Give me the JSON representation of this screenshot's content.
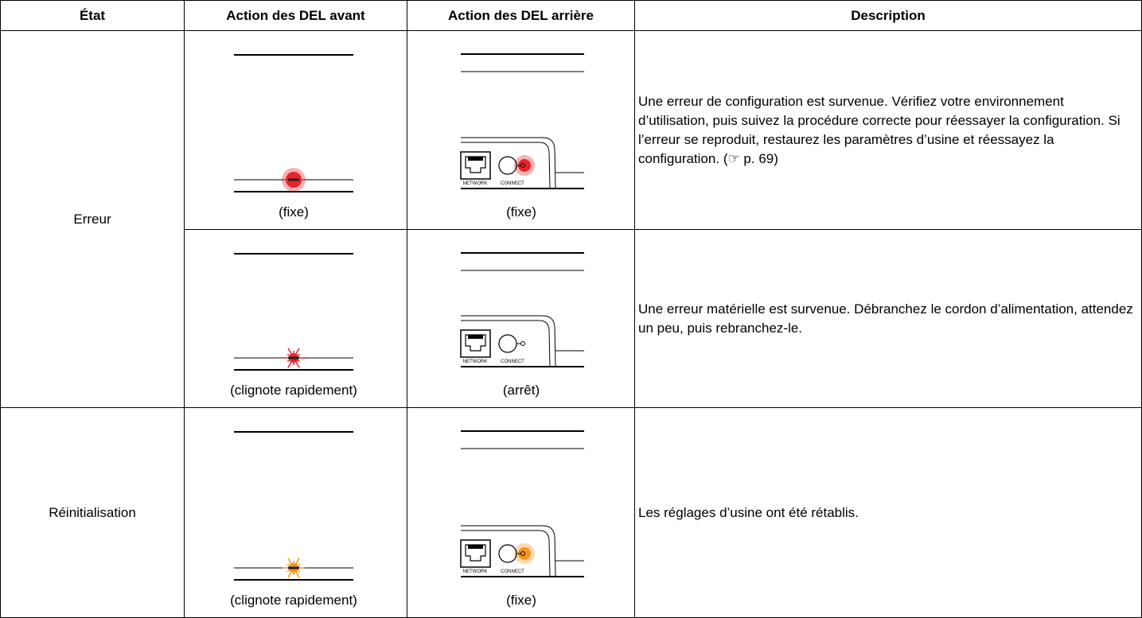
{
  "header": {
    "columns": [
      "État",
      "Action des DEL avant",
      "Action des DEL arrière",
      "Description"
    ]
  },
  "rows": [
    {
      "state": "Erreur",
      "front_caption": "(fixe)",
      "front_led": {
        "color": "#e8232a",
        "blinking": false
      },
      "rear_caption": "(fixe)",
      "rear_led": {
        "color": "#e8232a",
        "lit": true
      },
      "rear_labels": [
        "NETWORK",
        "CONNECT"
      ],
      "description": "Une erreur de configuration est survenue. Vérifiez votre environnement d’utilisation, puis suivez la procédure correcte pour réessayer la configuration. Si l’erreur se reproduit, restaurez les paramètres d’usine et réessayez la configuration.",
      "reference": "(☞ p. 69)"
    },
    {
      "front_caption": "(clignote rapidement)",
      "front_led": {
        "color": "#e8232a",
        "blinking": true
      },
      "rear_caption": "(arrêt)",
      "rear_led": {
        "color": "#e8232a",
        "lit": false
      },
      "rear_labels": [
        "NETWORK",
        "CONNECT"
      ],
      "description": "Une erreur matérielle est survenue. Débranchez le cordon d’alimentation, attendez un peu, puis rebranchez-le."
    },
    {
      "state": "Réinitialisation",
      "front_caption": "(clignote rapidement)",
      "front_led": {
        "color": "#f7941d",
        "blinking": true
      },
      "rear_caption": "(fixe)",
      "rear_led": {
        "color": "#f7941d",
        "lit": true
      },
      "rear_labels": [
        "NETWORK",
        "CONNECT"
      ],
      "description": "Les réglages d’usine ont été rétablis."
    }
  ]
}
